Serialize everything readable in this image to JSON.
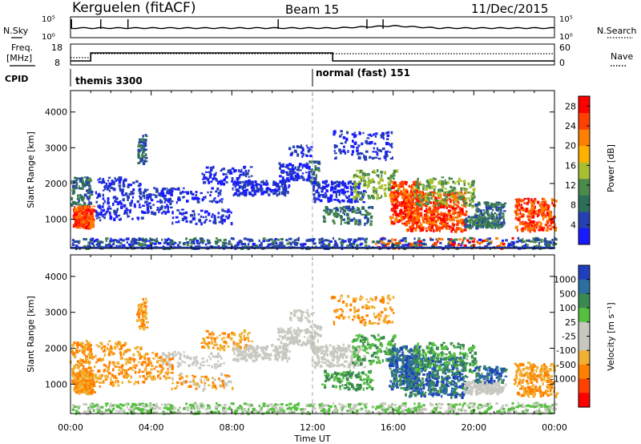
{
  "header": {
    "station": "Kerguelen (fitACF)",
    "beam": "Beam 15",
    "date": "11/Dec/2015"
  },
  "params_panels": {
    "nsky_label": "N.Sky",
    "nsearch_label": "N.Search",
    "freq_label_line1": "Freq.",
    "freq_label_line2": "[MHz]",
    "nave_label": "Nave",
    "cpid_label": "CPID",
    "noise_ticks": [
      "10^5",
      "10^0"
    ],
    "freq_ticks": [
      "18",
      "8"
    ],
    "nave_ticks": [
      "60",
      "0"
    ],
    "cpid_segments": [
      {
        "start_hour": 0.0,
        "label": "themis 3300"
      },
      {
        "start_hour": 12.0,
        "label": "normal (fast) 151"
      }
    ]
  },
  "x_axis": {
    "label": "Time UT",
    "ticks": [
      "00:00",
      "04:00",
      "08:00",
      "12:00",
      "16:00",
      "20:00",
      "00:00"
    ],
    "tick_hours": [
      0,
      4,
      8,
      12,
      16,
      20,
      24
    ]
  },
  "chart_data": [
    {
      "type": "heatmap",
      "ylabel": "Slant Range [km]",
      "yticks": [
        1000,
        2000,
        3000,
        4000
      ],
      "ylim": [
        180,
        4600
      ],
      "xlim": [
        0,
        24
      ],
      "colorbar": {
        "label": "Power [dB]",
        "ticks": [
          4,
          8,
          12,
          16,
          20,
          24,
          28
        ],
        "ticklabels": [
          "4",
          "8",
          "12",
          "16",
          "20",
          "24",
          "28"
        ],
        "range": [
          0,
          30
        ],
        "colors": [
          "#1a1aff",
          "#2540b0",
          "#2e6f5a",
          "#4a8a4a",
          "#a8c030",
          "#ffb000",
          "#ff8000",
          "#ff4000",
          "#ff0000"
        ]
      }
    },
    {
      "type": "heatmap",
      "ylabel": "Slant Range [km]",
      "yticks": [
        1000,
        2000,
        3000,
        4000
      ],
      "ylim": [
        180,
        4600
      ],
      "xlim": [
        0,
        24
      ],
      "colorbar": {
        "label": "Velocity [m s^-1]",
        "ticklabels": [
          "1000",
          "500",
          "100",
          "25",
          "-25",
          "-100",
          "-500",
          "-1000"
        ],
        "colors": [
          "#1f3fbf",
          "#2a6fa0",
          "#3a8a50",
          "#55c040",
          "#c8c8c0",
          "#c8c8c0",
          "#f0b030",
          "#ff8000",
          "#ff4000",
          "#ff0000"
        ]
      }
    }
  ]
}
